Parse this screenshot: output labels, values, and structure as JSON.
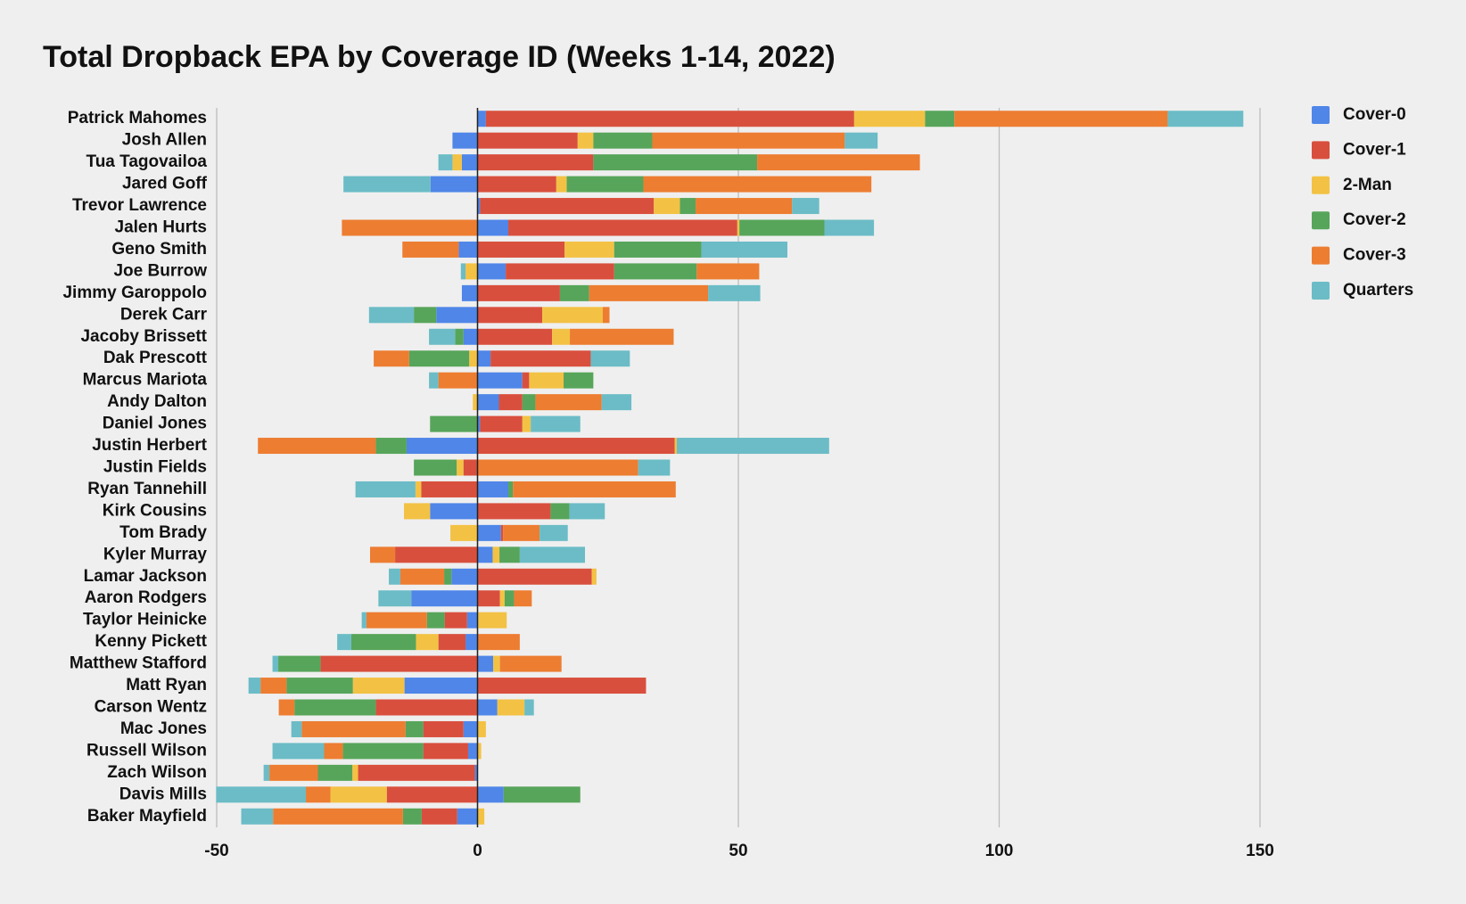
{
  "chart_data": {
    "type": "bar",
    "orientation": "horizontal",
    "stacked": true,
    "title": "Total Dropback EPA by Coverage ID (Weeks 1-14, 2022)",
    "categories": [
      "Patrick Mahomes",
      "Josh Allen",
      "Tua Tagovailoa",
      "Jared Goff",
      "Trevor Lawrence",
      "Jalen Hurts",
      "Geno Smith",
      "Joe Burrow",
      "Jimmy Garoppolo",
      "Derek Carr",
      "Jacoby Brissett",
      "Dak Prescott",
      "Marcus Mariota",
      "Andy Dalton",
      "Daniel Jones",
      "Justin Herbert",
      "Justin Fields",
      "Ryan Tannehill",
      "Kirk Cousins",
      "Tom Brady",
      "Kyler Murray",
      "Lamar Jackson",
      "Aaron Rodgers",
      "Taylor Heinicke",
      "Kenny Pickett",
      "Matthew Stafford",
      "Matt Ryan",
      "Carson Wentz",
      "Mac Jones",
      "Russell Wilson",
      "Zach Wilson",
      "Davis Mills",
      "Baker Mayfield"
    ],
    "series": [
      {
        "name": "Cover-0",
        "color": "#4f86e8",
        "values": [
          1.6,
          -4.8,
          -3,
          -9,
          0.5,
          5.9,
          -3.6,
          5.4,
          -3,
          -7.9,
          -2.7,
          2.5,
          8.6,
          4.1,
          0.5,
          -13.6,
          0,
          5.9,
          -9.1,
          4.5,
          2.9,
          -5,
          -12.7,
          -2,
          -2.3,
          3,
          -14,
          3.8,
          -2.7,
          -1.8,
          -0.5,
          5,
          -3.9
        ]
      },
      {
        "name": "Cover-1",
        "color": "#d94f3d",
        "values": [
          70.6,
          19.2,
          22.2,
          15.1,
          33.3,
          43.9,
          16.7,
          20.8,
          15.8,
          12.4,
          14.3,
          19.2,
          1.3,
          4.5,
          8.1,
          37.8,
          -2.7,
          -10.8,
          14,
          0.4,
          -15.8,
          21.9,
          4.3,
          -4.3,
          -5.2,
          -30.1,
          32.3,
          -19.5,
          -7.7,
          -8.6,
          -22.4,
          -17.4,
          -6.8
        ]
      },
      {
        "name": "2-Man",
        "color": "#f3c244",
        "values": [
          13.6,
          3,
          -1.8,
          2,
          5,
          0.4,
          9.5,
          -2.3,
          0,
          11.6,
          3.4,
          -1.6,
          6.6,
          -0.9,
          1.6,
          0.4,
          -1.3,
          -1.1,
          -5,
          -5.2,
          1.3,
          0.9,
          0.9,
          5.6,
          -4.3,
          1.3,
          -9.9,
          5.2,
          1.6,
          0.7,
          -1.1,
          -10.8,
          1.3
        ]
      },
      {
        "name": "Cover-2",
        "color": "#57a55a",
        "values": [
          5.6,
          11.3,
          31.4,
          14.7,
          3,
          16.3,
          16.7,
          15.8,
          5.6,
          -4.3,
          -1.6,
          -11.5,
          5.7,
          2.5,
          -9.1,
          -5.9,
          -8.2,
          0.9,
          3.6,
          0,
          3.9,
          -1.4,
          1.8,
          -3.4,
          -12.4,
          -8.1,
          -12.7,
          -15.6,
          -3.4,
          -15.4,
          -6.6,
          14.7,
          -3.6
        ]
      },
      {
        "name": "Cover-3",
        "color": "#ed7d31",
        "values": [
          40.9,
          36.9,
          31.2,
          43.7,
          18.5,
          -26,
          -10.8,
          12,
          22.8,
          1.3,
          19.9,
          -6.8,
          -7.5,
          12.7,
          0,
          -22.6,
          30.8,
          31.2,
          0,
          7,
          -4.8,
          -8.4,
          3.4,
          -11.6,
          8.1,
          11.8,
          -5,
          -3,
          -19.9,
          -3.6,
          -9.3,
          -4.7,
          -24.9
        ]
      },
      {
        "name": "Quarters",
        "color": "#6bbcc6",
        "values": [
          14.5,
          6.3,
          -2.7,
          -16.7,
          5.2,
          9.5,
          16.5,
          -0.9,
          10,
          -8.6,
          -5,
          7.5,
          -1.8,
          5.7,
          9.5,
          29.2,
          6.1,
          -11.5,
          6.8,
          5.4,
          12.5,
          -2.2,
          -6.3,
          -0.9,
          -2.7,
          -1.1,
          -2.3,
          1.8,
          -2,
          -9.9,
          -1.1,
          -17.2,
          -6.1
        ]
      }
    ],
    "xlim": [
      -50,
      150
    ],
    "xticks": [
      -50,
      0,
      50,
      100,
      150
    ],
    "grid": true,
    "legend": "right"
  }
}
